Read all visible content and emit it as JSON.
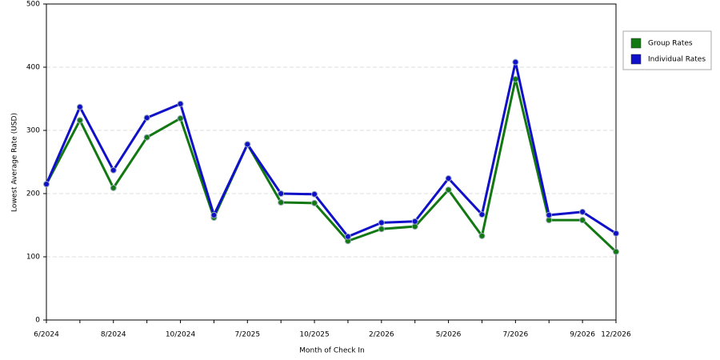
{
  "chart_data": {
    "type": "line",
    "x_label": "Month of Check In",
    "y_label": "Lowest Average Rate (USD)",
    "categories": [
      "6/2024",
      null,
      "8/2024",
      null,
      "10/2024",
      null,
      "7/2025",
      null,
      "10/2025",
      null,
      "2/2026",
      null,
      "5/2026",
      null,
      "7/2026",
      null,
      "9/2026",
      "12/2026"
    ],
    "series": [
      {
        "name": "Group Rates",
        "color": "#127812",
        "values": [
          215,
          316,
          209,
          289,
          319,
          162,
          278,
          186,
          185,
          125,
          144,
          148,
          206,
          133,
          381,
          158,
          158,
          108
        ]
      },
      {
        "name": "Individual Rates",
        "color": "#1010c8",
        "values": [
          215,
          337,
          237,
          320,
          342,
          166,
          278,
          200,
          199,
          132,
          154,
          156,
          224,
          167,
          408,
          166,
          171,
          137
        ]
      }
    ],
    "ylim": [
      0,
      500
    ],
    "yticks": [
      0,
      100,
      200,
      300,
      400,
      500
    ],
    "grid": true,
    "legend": "right"
  }
}
